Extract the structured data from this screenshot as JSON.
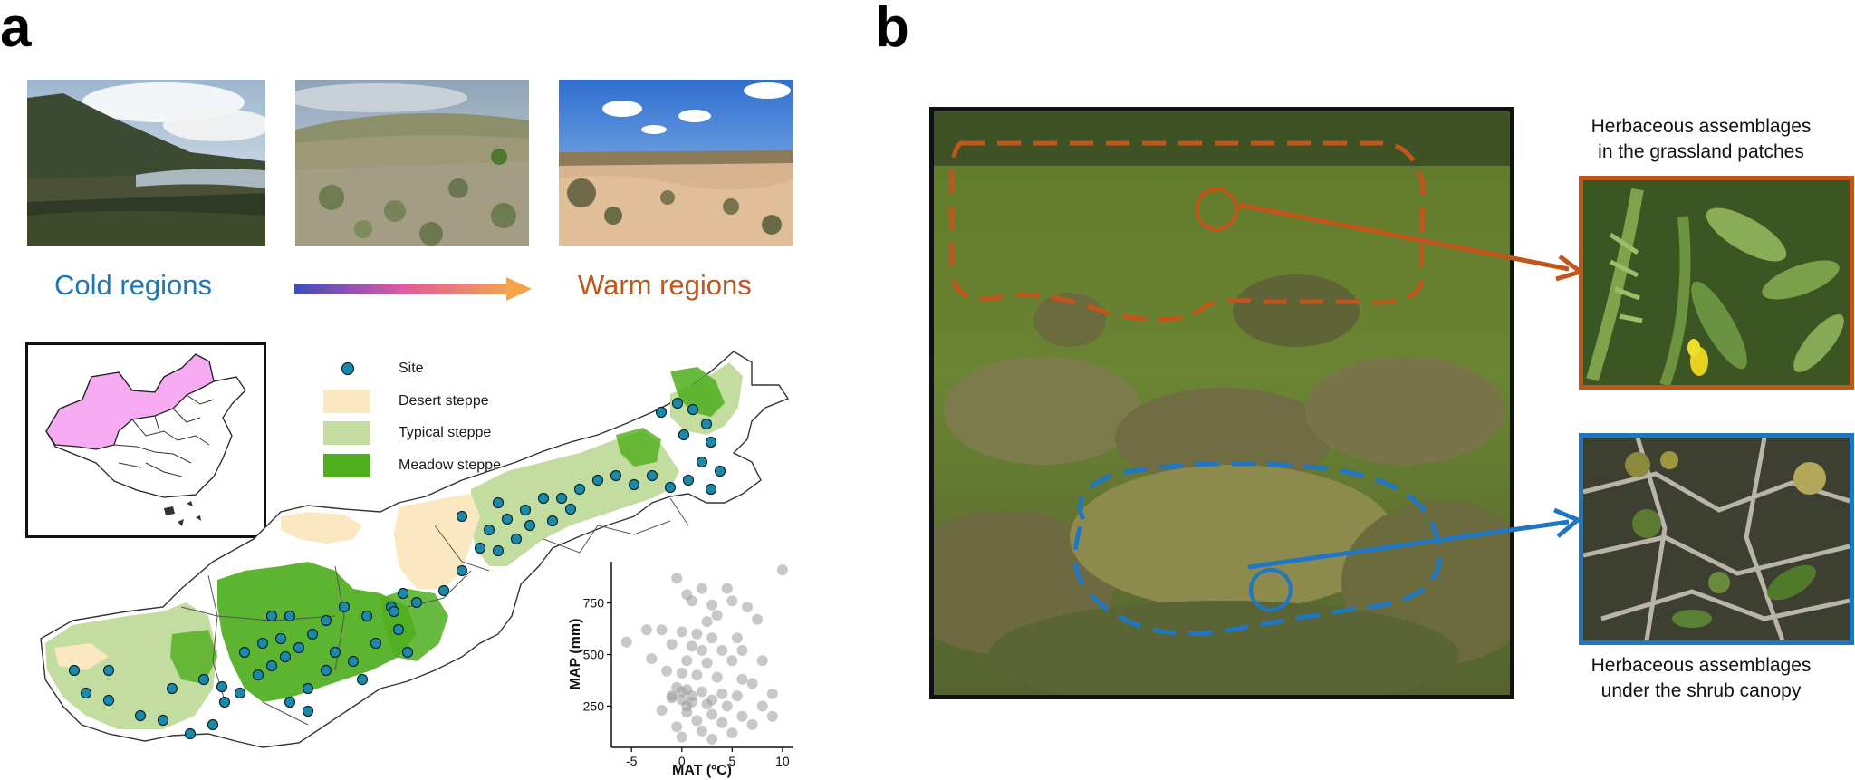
{
  "panel_a": {
    "letter": "a",
    "cold_label": "Cold regions",
    "warm_label": "Warm regions",
    "colors": {
      "cold": "#1f77b4",
      "warm": "#c2551a",
      "gradient_start": "#3b4cc0",
      "gradient_mid": "#e05aa0",
      "gradient_end": "#f7a34a"
    },
    "legend": {
      "site": "Site",
      "desert": "Desert steppe",
      "typical": "Typical steppe",
      "meadow": "Meadow steppe",
      "colors": {
        "site": "#1a8aa8",
        "desert": "#fbe8c0",
        "typical": "#c3dca0",
        "meadow": "#4fae1e"
      }
    }
  },
  "panel_b": {
    "letter": "b",
    "caption_top_1": "Herbaceous assemblages",
    "caption_top_2": "in the grassland patches",
    "caption_bottom_1": "Herbaceous assemblages",
    "caption_bottom_2": "under the shrub canopy",
    "colors": {
      "grassland": "#c2551a",
      "shrub": "#1f77c4"
    }
  },
  "chart_data": {
    "type": "scatter",
    "xlabel": "MAT (ºC)",
    "ylabel": "MAP (mm)",
    "xlim": [
      -7,
      11
    ],
    "ylim": [
      50,
      950
    ],
    "x_ticks": [
      -5,
      0,
      5,
      10
    ],
    "y_ticks": [
      250,
      500,
      750
    ],
    "point_color": "#9a9a9a",
    "points": [
      [
        10,
        910
      ],
      [
        -0.5,
        870
      ],
      [
        0.5,
        790
      ],
      [
        2,
        820
      ],
      [
        4.5,
        820
      ],
      [
        5,
        760
      ],
      [
        1,
        760
      ],
      [
        3,
        740
      ],
      [
        6.5,
        730
      ],
      [
        3.5,
        690
      ],
      [
        7.5,
        670
      ],
      [
        2.5,
        660
      ],
      [
        -2,
        620
      ],
      [
        -3.5,
        620
      ],
      [
        0,
        610
      ],
      [
        1.5,
        600
      ],
      [
        3,
        580
      ],
      [
        5.5,
        580
      ],
      [
        -5.5,
        560
      ],
      [
        -1,
        550
      ],
      [
        1,
        540
      ],
      [
        2,
        520
      ],
      [
        4,
        520
      ],
      [
        6,
        520
      ],
      [
        -3,
        480
      ],
      [
        0.5,
        470
      ],
      [
        2.5,
        460
      ],
      [
        5,
        470
      ],
      [
        8,
        470
      ],
      [
        -1.5,
        420
      ],
      [
        0,
        410
      ],
      [
        1.5,
        400
      ],
      [
        3.5,
        390
      ],
      [
        6,
        380
      ],
      [
        7,
        360
      ],
      [
        -0.5,
        340
      ],
      [
        0.5,
        330
      ],
      [
        2,
        320
      ],
      [
        4,
        310
      ],
      [
        5.5,
        300
      ],
      [
        9,
        310
      ],
      [
        -1,
        290
      ],
      [
        0,
        280
      ],
      [
        1,
        270
      ],
      [
        2.5,
        260
      ],
      [
        4.5,
        250
      ],
      [
        8,
        250
      ],
      [
        -2,
        230
      ],
      [
        0.5,
        220
      ],
      [
        3,
        210
      ],
      [
        6,
        200
      ],
      [
        9,
        200
      ],
      [
        1.5,
        180
      ],
      [
        4,
        170
      ],
      [
        7,
        160
      ],
      [
        -0.5,
        150
      ],
      [
        2,
        130
      ],
      [
        5,
        120
      ],
      [
        0,
        100
      ],
      [
        3,
        90
      ],
      [
        -1,
        300
      ],
      [
        0,
        320
      ],
      [
        1,
        300
      ],
      [
        3,
        280
      ],
      [
        0.5,
        250
      ]
    ]
  }
}
